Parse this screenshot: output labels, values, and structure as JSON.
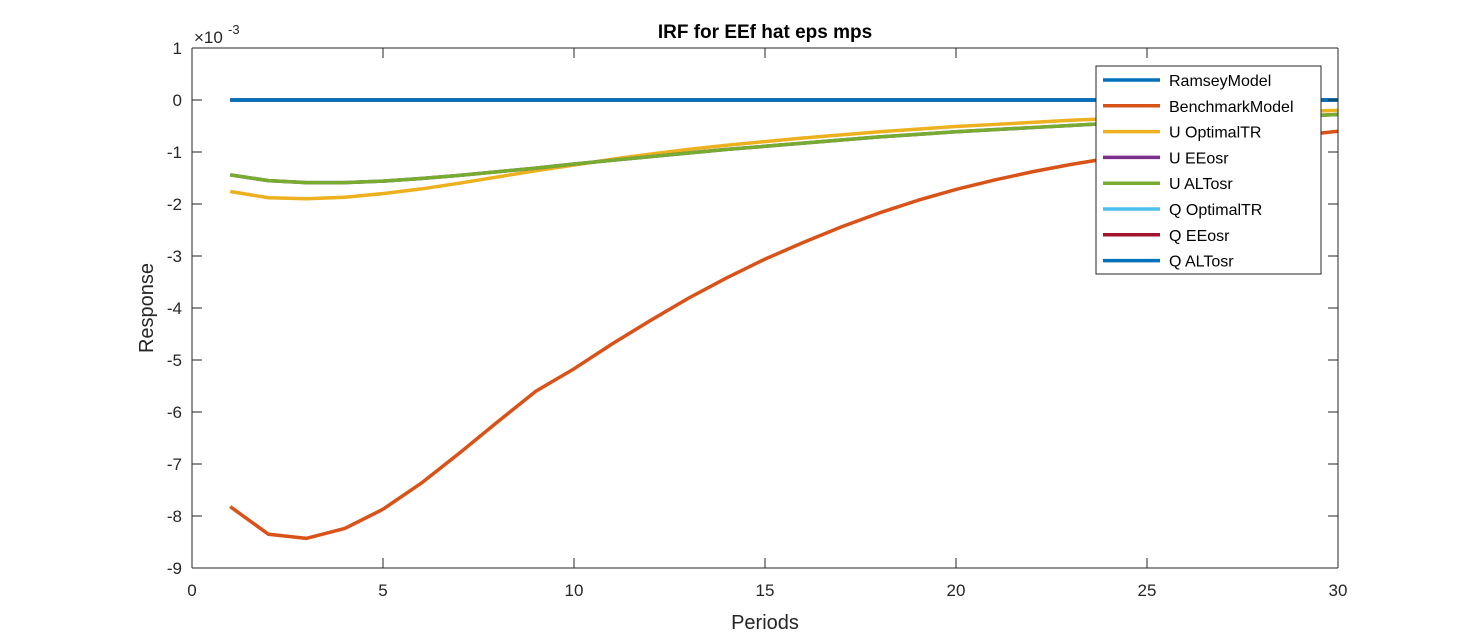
{
  "chart_data": {
    "type": "line",
    "title": "IRF for EEf hat eps mps",
    "xlabel": "Periods",
    "ylabel": "Response",
    "y_exponent_label": "×10",
    "y_exponent_power": "-3",
    "xlim": [
      0,
      30
    ],
    "ylim": [
      -9,
      1
    ],
    "x_ticks": [
      "0",
      "5",
      "10",
      "15",
      "20",
      "25",
      "30"
    ],
    "y_ticks": [
      "-9",
      "-8",
      "-7",
      "-6",
      "-5",
      "-4",
      "-3",
      "-2",
      "-1",
      "0",
      "1"
    ],
    "x_tick_values": [
      0,
      5,
      10,
      15,
      20,
      25,
      30
    ],
    "y_tick_values": [
      -9,
      -8,
      -7,
      -6,
      -5,
      -4,
      -3,
      -2,
      -1,
      0,
      1
    ],
    "grid": false,
    "legend_position": "top-right",
    "x": [
      1,
      2,
      3,
      4,
      5,
      6,
      7,
      8,
      9,
      10,
      11,
      12,
      13,
      14,
      15,
      16,
      17,
      18,
      19,
      20,
      21,
      22,
      23,
      24,
      25,
      26,
      27,
      28,
      29,
      30
    ],
    "series": [
      {
        "name": "RamseyModel",
        "color": "#0072BD",
        "values": [
          0,
          0,
          0,
          0,
          0,
          0,
          0,
          0,
          0,
          0,
          0,
          0,
          0,
          0,
          0,
          0,
          0,
          0,
          0,
          0,
          0,
          0,
          0,
          0,
          0,
          0,
          0,
          0,
          0,
          0
        ]
      },
      {
        "name": "BenchmarkModel",
        "color": "#D95319",
        "values": [
          -7.82,
          -8.35,
          -8.43,
          -8.24,
          -7.87,
          -7.37,
          -6.79,
          -6.19,
          -5.6,
          -5.17,
          -4.69,
          -4.24,
          -3.81,
          -3.42,
          -3.06,
          -2.74,
          -2.44,
          -2.17,
          -1.93,
          -1.72,
          -1.54,
          -1.38,
          -1.24,
          -1.12,
          -1.0,
          -0.9,
          -0.82,
          -0.74,
          -0.68,
          -0.6
        ]
      },
      {
        "name": "U OptimalTR",
        "color": "#EDB120",
        "values": [
          -1.76,
          -1.88,
          -1.9,
          -1.87,
          -1.8,
          -1.71,
          -1.6,
          -1.48,
          -1.36,
          -1.25,
          -1.14,
          -1.04,
          -0.95,
          -0.87,
          -0.8,
          -0.73,
          -0.67,
          -0.61,
          -0.56,
          -0.51,
          -0.47,
          -0.43,
          -0.39,
          -0.36,
          -0.33,
          -0.3,
          -0.27,
          -0.25,
          -0.22,
          -0.2
        ]
      },
      {
        "name": "U EEosr",
        "color": "#7E2F8E",
        "values": [
          -1.44,
          -1.55,
          -1.59,
          -1.59,
          -1.56,
          -1.51,
          -1.45,
          -1.38,
          -1.31,
          -1.23,
          -1.16,
          -1.09,
          -1.02,
          -0.95,
          -0.89,
          -0.83,
          -0.77,
          -0.71,
          -0.66,
          -0.61,
          -0.57,
          -0.53,
          -0.49,
          -0.45,
          -0.42,
          -0.39,
          -0.36,
          -0.33,
          -0.31,
          -0.28
        ]
      },
      {
        "name": "U ALTosr",
        "color": "#77AC30",
        "values": [
          -1.44,
          -1.55,
          -1.59,
          -1.59,
          -1.56,
          -1.51,
          -1.45,
          -1.38,
          -1.31,
          -1.23,
          -1.16,
          -1.09,
          -1.02,
          -0.95,
          -0.89,
          -0.83,
          -0.77,
          -0.71,
          -0.66,
          -0.61,
          -0.57,
          -0.53,
          -0.49,
          -0.45,
          -0.42,
          -0.39,
          -0.36,
          -0.33,
          -0.31,
          -0.28
        ]
      },
      {
        "name": "Q OptimalTR",
        "color": "#4DBEEE",
        "values": [
          0,
          0,
          0,
          0,
          0,
          0,
          0,
          0,
          0,
          0,
          0,
          0,
          0,
          0,
          0,
          0,
          0,
          0,
          0,
          0,
          0,
          0,
          0,
          0,
          0,
          0,
          0,
          0,
          0,
          0
        ]
      },
      {
        "name": "Q EEosr",
        "color": "#A2142F",
        "values": [
          0,
          0,
          0,
          0,
          0,
          0,
          0,
          0,
          0,
          0,
          0,
          0,
          0,
          0,
          0,
          0,
          0,
          0,
          0,
          0,
          0,
          0,
          0,
          0,
          0,
          0,
          0,
          0,
          0,
          0
        ]
      },
      {
        "name": "Q ALTosr",
        "color": "#0072BD",
        "values": [
          0,
          0,
          0,
          0,
          0,
          0,
          0,
          0,
          0,
          0,
          0,
          0,
          0,
          0,
          0,
          0,
          0,
          0,
          0,
          0,
          0,
          0,
          0,
          0,
          0,
          0,
          0,
          0,
          0,
          0
        ]
      }
    ]
  }
}
